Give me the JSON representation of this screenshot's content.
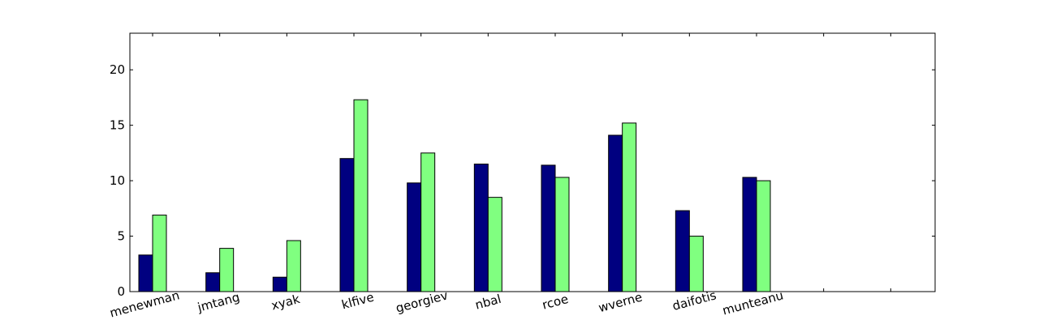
{
  "chart_data": {
    "type": "bar",
    "title": "",
    "xlabel": "",
    "ylabel": "",
    "ylim": [
      0,
      23.3
    ],
    "yticks": [
      0,
      5,
      10,
      15,
      20
    ],
    "categories": [
      "menewman",
      "jmtang",
      "xyak",
      "klfive",
      "georgiev",
      "nbal",
      "rcoe",
      "wverne",
      "daifotis",
      "munteanu",
      "",
      ""
    ],
    "series": [
      {
        "color": "#000080",
        "values": [
          3.3,
          1.7,
          1.3,
          12.0,
          9.8,
          11.5,
          11.4,
          14.1,
          7.3,
          10.3,
          0,
          0
        ]
      },
      {
        "color": "#80ff80",
        "values": [
          6.9,
          3.9,
          4.6,
          17.3,
          12.5,
          8.5,
          10.3,
          15.2,
          5.0,
          10.0,
          0,
          0
        ]
      }
    ],
    "grid": false,
    "legend": "none"
  }
}
